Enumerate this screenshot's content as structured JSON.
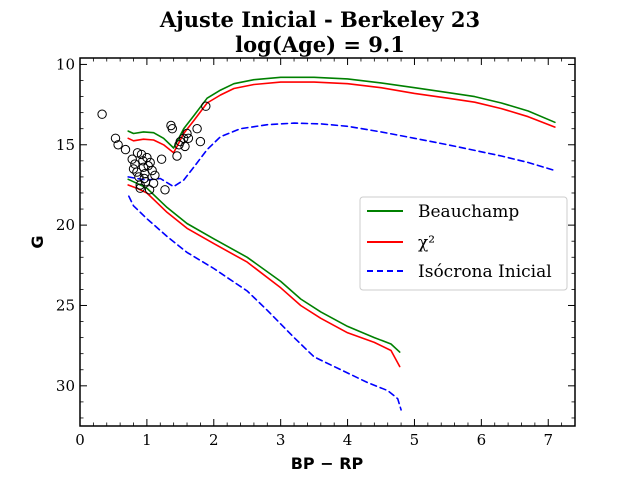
{
  "chart_data": {
    "type": "line",
    "title": "Ajuste Inicial - Berkeley 23",
    "subtitle": "log(Age) = 9.1",
    "xlabel": "BP − RP",
    "ylabel": "G",
    "xlim": [
      0,
      7.4
    ],
    "ylim": [
      32.5,
      9.6
    ],
    "y_inverted": true,
    "xticks": [
      0,
      1,
      2,
      3,
      4,
      5,
      6,
      7
    ],
    "yticks": [
      10,
      15,
      20,
      25,
      30
    ],
    "legend_position": "center-right",
    "series": [
      {
        "name": "Beauchamp",
        "color": "#008000",
        "dash": "solid",
        "lower_branch": [
          [
            0.72,
            17.15
          ],
          [
            0.85,
            17.4
          ],
          [
            1.0,
            17.7
          ],
          [
            1.15,
            18.3
          ],
          [
            1.3,
            18.9
          ],
          [
            1.6,
            19.9
          ],
          [
            2.0,
            20.85
          ],
          [
            2.5,
            22.0
          ],
          [
            3.0,
            23.5
          ],
          [
            3.3,
            24.6
          ],
          [
            3.6,
            25.4
          ],
          [
            4.0,
            26.3
          ],
          [
            4.4,
            27.0
          ],
          [
            4.65,
            27.4
          ],
          [
            4.78,
            27.9
          ]
        ],
        "upper_branch": [
          [
            0.72,
            14.15
          ],
          [
            0.8,
            14.3
          ],
          [
            0.95,
            14.2
          ],
          [
            1.1,
            14.25
          ],
          [
            1.25,
            14.6
          ],
          [
            1.4,
            15.2
          ],
          [
            1.45,
            14.8
          ],
          [
            1.55,
            14.0
          ],
          [
            1.7,
            13.2
          ],
          [
            1.9,
            12.1
          ],
          [
            2.1,
            11.6
          ],
          [
            2.3,
            11.2
          ],
          [
            2.6,
            10.95
          ],
          [
            3.0,
            10.8
          ],
          [
            3.5,
            10.8
          ],
          [
            4.0,
            10.9
          ],
          [
            4.5,
            11.15
          ],
          [
            5.0,
            11.45
          ],
          [
            5.5,
            11.75
          ],
          [
            5.9,
            12.0
          ],
          [
            6.3,
            12.4
          ],
          [
            6.7,
            12.9
          ],
          [
            7.1,
            13.6
          ]
        ]
      },
      {
        "name": "χ²",
        "color": "#ff0000",
        "dash": "solid",
        "lower_branch": [
          [
            0.72,
            17.5
          ],
          [
            0.85,
            17.7
          ],
          [
            1.0,
            18.0
          ],
          [
            1.15,
            18.6
          ],
          [
            1.3,
            19.2
          ],
          [
            1.6,
            20.2
          ],
          [
            2.0,
            21.15
          ],
          [
            2.5,
            22.3
          ],
          [
            3.0,
            23.9
          ],
          [
            3.3,
            25.0
          ],
          [
            3.6,
            25.8
          ],
          [
            4.0,
            26.7
          ],
          [
            4.4,
            27.3
          ],
          [
            4.65,
            27.8
          ],
          [
            4.78,
            28.8
          ]
        ],
        "upper_branch": [
          [
            0.72,
            14.6
          ],
          [
            0.8,
            14.75
          ],
          [
            0.95,
            14.65
          ],
          [
            1.1,
            14.7
          ],
          [
            1.25,
            15.0
          ],
          [
            1.4,
            15.5
          ],
          [
            1.45,
            15.1
          ],
          [
            1.55,
            14.3
          ],
          [
            1.7,
            13.5
          ],
          [
            1.9,
            12.4
          ],
          [
            2.1,
            11.9
          ],
          [
            2.3,
            11.5
          ],
          [
            2.6,
            11.25
          ],
          [
            3.0,
            11.1
          ],
          [
            3.5,
            11.1
          ],
          [
            4.0,
            11.2
          ],
          [
            4.5,
            11.45
          ],
          [
            5.0,
            11.8
          ],
          [
            5.5,
            12.1
          ],
          [
            5.9,
            12.35
          ],
          [
            6.3,
            12.75
          ],
          [
            6.7,
            13.25
          ],
          [
            7.1,
            13.9
          ]
        ]
      },
      {
        "name": "Isócrona Inicial",
        "color": "#0000ff",
        "dash": "dashed",
        "lower_branch": [
          [
            0.73,
            18.2
          ],
          [
            0.8,
            18.8
          ],
          [
            1.0,
            19.6
          ],
          [
            1.3,
            20.7
          ],
          [
            1.6,
            21.7
          ],
          [
            2.0,
            22.7
          ],
          [
            2.5,
            24.1
          ],
          [
            2.8,
            25.3
          ],
          [
            3.2,
            27.0
          ],
          [
            3.5,
            28.2
          ],
          [
            4.0,
            29.2
          ],
          [
            4.3,
            29.8
          ],
          [
            4.6,
            30.3
          ],
          [
            4.75,
            30.8
          ],
          [
            4.8,
            31.5
          ]
        ],
        "upper_branch": [
          [
            0.72,
            17.0
          ],
          [
            0.85,
            17.1
          ],
          [
            1.0,
            17.2
          ],
          [
            1.2,
            17.1
          ],
          [
            1.4,
            17.6
          ],
          [
            1.55,
            17.2
          ],
          [
            1.7,
            16.4
          ],
          [
            1.9,
            15.3
          ],
          [
            2.1,
            14.5
          ],
          [
            2.4,
            14.0
          ],
          [
            2.8,
            13.75
          ],
          [
            3.2,
            13.65
          ],
          [
            3.6,
            13.7
          ],
          [
            4.0,
            13.85
          ],
          [
            4.5,
            14.2
          ],
          [
            5.0,
            14.6
          ],
          [
            5.5,
            15.0
          ],
          [
            5.9,
            15.35
          ],
          [
            6.3,
            15.7
          ],
          [
            6.7,
            16.1
          ],
          [
            7.1,
            16.6
          ]
        ]
      }
    ],
    "observed_stars": {
      "marker": "open-circle",
      "points": [
        [
          0.33,
          13.1
        ],
        [
          0.53,
          14.6
        ],
        [
          0.57,
          15.0
        ],
        [
          0.68,
          15.3
        ],
        [
          0.78,
          15.9
        ],
        [
          0.82,
          16.2
        ],
        [
          0.85,
          16.7
        ],
        [
          0.88,
          17.0
        ],
        [
          0.9,
          17.5
        ],
        [
          0.92,
          15.6
        ],
        [
          0.94,
          16.0
        ],
        [
          0.95,
          16.4
        ],
        [
          0.97,
          16.8
        ],
        [
          0.98,
          17.3
        ],
        [
          1.0,
          15.8
        ],
        [
          1.02,
          16.3
        ],
        [
          1.04,
          17.8
        ],
        [
          1.05,
          16.1
        ],
        [
          1.08,
          16.6
        ],
        [
          1.1,
          17.4
        ],
        [
          1.12,
          16.9
        ],
        [
          0.86,
          15.5
        ],
        [
          0.9,
          17.7
        ],
        [
          0.96,
          17.1
        ],
        [
          0.8,
          16.5
        ],
        [
          1.22,
          15.9
        ],
        [
          1.27,
          17.8
        ],
        [
          1.36,
          13.8
        ],
        [
          1.38,
          14.0
        ],
        [
          1.45,
          15.7
        ],
        [
          1.48,
          15.0
        ],
        [
          1.5,
          14.8
        ],
        [
          1.55,
          14.6
        ],
        [
          1.57,
          15.1
        ],
        [
          1.6,
          14.3
        ],
        [
          1.62,
          14.6
        ],
        [
          1.75,
          14.0
        ],
        [
          1.8,
          14.8
        ],
        [
          1.88,
          12.6
        ]
      ]
    }
  }
}
